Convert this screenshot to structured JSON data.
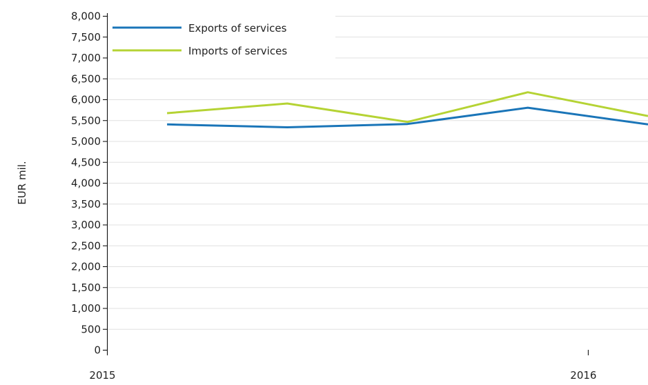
{
  "chart_data": {
    "type": "line",
    "title": "",
    "xlabel": "",
    "ylabel": "EUR mil.",
    "ylim": [
      0,
      8000
    ],
    "y_ticks": [
      0,
      500,
      1000,
      1500,
      2000,
      2500,
      3000,
      3500,
      4000,
      4500,
      5000,
      5500,
      6000,
      6500,
      7000,
      7500,
      8000
    ],
    "y_tick_labels": [
      "0",
      "500",
      "1,000",
      "1,500",
      "2,000",
      "2,500",
      "3,000",
      "3,500",
      "4,000",
      "4,500",
      "5,000",
      "5,500",
      "6,000",
      "6,500",
      "7,000",
      "7,500",
      "8,000"
    ],
    "xlim": [
      2015.0,
      2016.125
    ],
    "x_ticks": [
      2015,
      2016
    ],
    "x_tick_labels": [
      "2015",
      "2016"
    ],
    "x": [
      2015.125,
      2015.375,
      2015.625,
      2015.875,
      2016.125
    ],
    "series": [
      {
        "name": "Exports of services",
        "color": "#1a75b8",
        "values": [
          5400,
          5330,
          5410,
          5800,
          5400
        ]
      },
      {
        "name": "Imports of services",
        "color": "#b5d334",
        "values": [
          5670,
          5900,
          5460,
          6170,
          5600
        ]
      }
    ],
    "grid": true,
    "legend": "top-left"
  }
}
